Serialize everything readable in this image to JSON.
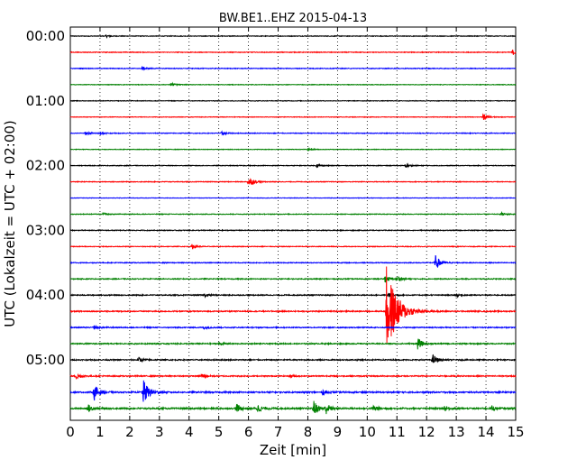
{
  "chart_data": {
    "type": "line",
    "title": "BW.BE1..EHZ 2015-04-13",
    "xlabel": "Zeit  [min]",
    "ylabel": "UTC (Lokalzeit = UTC + 02:00)",
    "xlim": [
      0,
      15
    ],
    "x_ticks": [
      "0",
      "1",
      "2",
      "3",
      "4",
      "5",
      "6",
      "7",
      "8",
      "9",
      "10",
      "11",
      "12",
      "13",
      "14",
      "15"
    ],
    "y_ticks": [
      "00:00",
      "01:00",
      "02:00",
      "03:00",
      "04:00",
      "05:00"
    ],
    "grid": "vertical dotted",
    "trace_colors": [
      "#000000",
      "#ff0000",
      "#0000ff",
      "#008000"
    ],
    "traces": [
      {
        "start": "00:00",
        "noise": 0.6,
        "events": [
          {
            "t": 1.2,
            "amp": 1.5
          }
        ]
      },
      {
        "start": "00:15",
        "noise": 0.6,
        "events": [
          {
            "t": 14.9,
            "amp": 3
          }
        ]
      },
      {
        "start": "00:30",
        "noise": 0.6,
        "events": [
          {
            "t": 2.4,
            "amp": 2
          }
        ]
      },
      {
        "start": "00:45",
        "noise": 0.5,
        "events": [
          {
            "t": 3.4,
            "amp": 2
          }
        ]
      },
      {
        "start": "01:00",
        "noise": 0.5,
        "events": []
      },
      {
        "start": "01:15",
        "noise": 0.5,
        "events": [
          {
            "t": 13.9,
            "amp": 4
          }
        ]
      },
      {
        "start": "01:30",
        "noise": 0.6,
        "events": [
          {
            "t": 0.5,
            "amp": 2
          },
          {
            "t": 1.0,
            "amp": 2
          },
          {
            "t": 5.1,
            "amp": 2
          }
        ]
      },
      {
        "start": "01:45",
        "noise": 0.5,
        "events": [
          {
            "t": 8.0,
            "amp": 1.5
          }
        ]
      },
      {
        "start": "02:00",
        "noise": 0.6,
        "events": [
          {
            "t": 8.3,
            "amp": 2
          },
          {
            "t": 11.3,
            "amp": 2
          }
        ]
      },
      {
        "start": "02:15",
        "noise": 0.6,
        "events": [
          {
            "t": 6.0,
            "amp": 6
          }
        ]
      },
      {
        "start": "02:30",
        "noise": 0.4,
        "events": []
      },
      {
        "start": "02:45",
        "noise": 0.6,
        "events": [
          {
            "t": 1.1,
            "amp": 1.5
          },
          {
            "t": 14.5,
            "amp": 2
          }
        ]
      },
      {
        "start": "03:00",
        "noise": 0.7,
        "events": []
      },
      {
        "start": "03:15",
        "noise": 0.6,
        "events": [
          {
            "t": 4.1,
            "amp": 3
          }
        ]
      },
      {
        "start": "03:30",
        "noise": 0.7,
        "events": [
          {
            "t": 12.3,
            "amp": 8
          }
        ]
      },
      {
        "start": "03:45",
        "noise": 0.8,
        "events": [
          {
            "t": 10.6,
            "amp": 4
          },
          {
            "t": 11.0,
            "amp": 3
          }
        ]
      },
      {
        "start": "04:00",
        "noise": 0.9,
        "events": [
          {
            "t": 4.5,
            "amp": 2
          },
          {
            "t": 10.7,
            "amp": 3
          },
          {
            "t": 13.0,
            "amp": 2
          }
        ]
      },
      {
        "start": "04:15",
        "noise": 1.0,
        "events": [
          {
            "t": 10.65,
            "amp": 50
          }
        ]
      },
      {
        "start": "04:30",
        "noise": 0.9,
        "events": [
          {
            "t": 0.8,
            "amp": 2
          },
          {
            "t": 4.5,
            "amp": 2
          }
        ]
      },
      {
        "start": "04:45",
        "noise": 1.0,
        "events": [
          {
            "t": 11.7,
            "amp": 6
          },
          {
            "t": 5.0,
            "amp": 2
          }
        ]
      },
      {
        "start": "05:00",
        "noise": 1.0,
        "events": [
          {
            "t": 2.3,
            "amp": 3
          },
          {
            "t": 12.2,
            "amp": 6
          }
        ]
      },
      {
        "start": "05:15",
        "noise": 1.0,
        "events": [
          {
            "t": 0.2,
            "amp": 4
          },
          {
            "t": 4.4,
            "amp": 3
          },
          {
            "t": 7.4,
            "amp": 2
          }
        ]
      },
      {
        "start": "05:30",
        "noise": 1.2,
        "events": [
          {
            "t": 0.8,
            "amp": 9
          },
          {
            "t": 2.45,
            "amp": 14
          },
          {
            "t": 8.5,
            "amp": 3
          }
        ]
      },
      {
        "start": "05:45",
        "noise": 1.3,
        "events": [
          {
            "t": 0.6,
            "amp": 4
          },
          {
            "t": 5.6,
            "amp": 5
          },
          {
            "t": 6.3,
            "amp": 5
          },
          {
            "t": 8.2,
            "amp": 8
          },
          {
            "t": 8.6,
            "amp": 6
          },
          {
            "t": 10.2,
            "amp": 4
          },
          {
            "t": 12.6,
            "amp": 3
          },
          {
            "t": 14.2,
            "amp": 3
          }
        ]
      }
    ]
  }
}
